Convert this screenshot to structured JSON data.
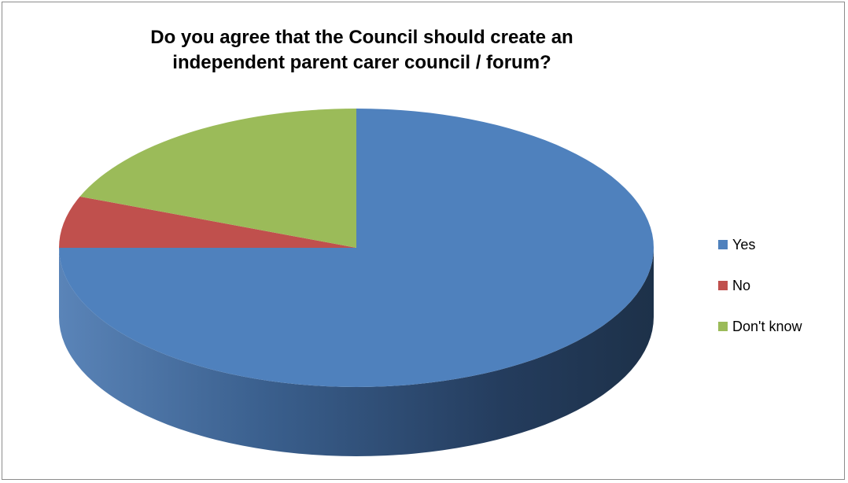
{
  "chart_data": {
    "type": "pie",
    "title_lines": [
      "Do you agree that the Council should create an",
      "independent parent carer council / forum?"
    ],
    "categories": [
      "Yes",
      "No",
      "Don't know"
    ],
    "values": [
      75,
      6,
      19
    ],
    "colors": [
      "#4F81BD",
      "#C0504D",
      "#9BBB59"
    ],
    "legend_position": "right",
    "style": "3d"
  }
}
